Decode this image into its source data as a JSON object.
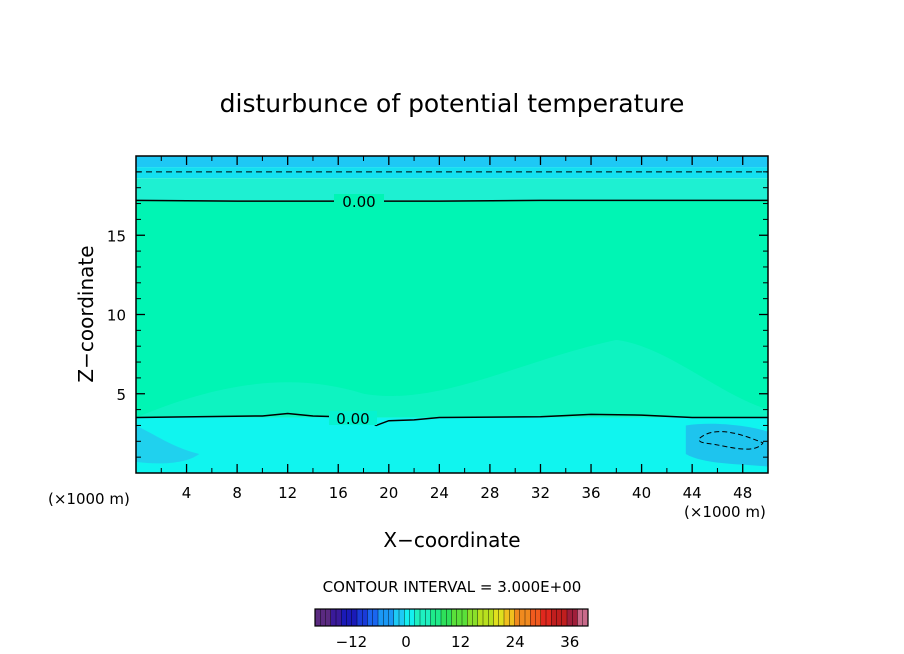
{
  "chart_data": {
    "type": "heatmap",
    "title": "disturbunce of potential temperature",
    "xlabel": "X−coordinate",
    "ylabel": "Z−coordinate",
    "x_units": "(×1000 m)",
    "y_units": "(×1000 m)",
    "xlim": [
      0,
      50
    ],
    "ylim": [
      0,
      20
    ],
    "x_ticks": [
      4,
      8,
      12,
      16,
      20,
      24,
      28,
      32,
      36,
      40,
      44,
      48
    ],
    "x_tick_labels": [
      "4",
      "8",
      "12",
      "16",
      "20",
      "24",
      "28",
      "32",
      "36",
      "40",
      "44",
      "48"
    ],
    "y_ticks": [
      5,
      10,
      15
    ],
    "y_tick_labels": [
      "5",
      "10",
      "15"
    ],
    "contour_interval_text": "CONTOUR INTERVAL = 3.000E+00",
    "contour_labels": [
      {
        "text": "0.00",
        "x": 17.5,
        "z": 17.2
      },
      {
        "text": "0.00",
        "x": 17.5,
        "z": 3.5
      }
    ],
    "zero_contours": [
      {
        "x": [
          0,
          8,
          16,
          24,
          32,
          40,
          50
        ],
        "z": [
          17.2,
          17.15,
          17.15,
          17.15,
          17.2,
          17.2,
          17.2
        ]
      },
      {
        "x": [
          0,
          10,
          12,
          14,
          18,
          19,
          20,
          22,
          24,
          32,
          36,
          40,
          44,
          50
        ],
        "z": [
          3.5,
          3.6,
          3.75,
          3.6,
          3.5,
          3.0,
          3.3,
          3.35,
          3.5,
          3.55,
          3.7,
          3.65,
          3.5,
          3.5
        ]
      }
    ],
    "dashed_contour_top": {
      "x": [
        0,
        50
      ],
      "z": [
        19.0,
        19.0
      ]
    },
    "field_bands": [
      {
        "z": [
          19.3,
          20
        ],
        "value": -1.5,
        "color": "#1ec8f5"
      },
      {
        "z": [
          18.6,
          19.3
        ],
        "value": -0.8,
        "color": "#14e0f0"
      },
      {
        "z": [
          17.2,
          18.6
        ],
        "value": -0.3,
        "color": "#1ef0d2"
      },
      {
        "z": [
          3.5,
          17.2
        ],
        "value": 0.3,
        "color": "#00f5b4"
      },
      {
        "z": [
          0,
          3.5
        ],
        "value": -0.8,
        "color": "#10f5ef"
      }
    ],
    "colorbar": {
      "min": -20,
      "max": 40,
      "ticks": [
        -12,
        0,
        12,
        24,
        36
      ],
      "tick_labels": [
        "−12",
        "0",
        "12",
        "24",
        "36"
      ],
      "colors": [
        "#5a2a80",
        "#3a1a9a",
        "#1a1ab8",
        "#1a3ad8",
        "#1a66f0",
        "#1a98f5",
        "#1ecaf5",
        "#14f0f0",
        "#1ef0c0",
        "#1eeb8a",
        "#2ee05a",
        "#5ae03a",
        "#8ae02a",
        "#b8e01e",
        "#e0e01e",
        "#f0c01e",
        "#f08a1e",
        "#f05a1e",
        "#e0281e",
        "#c01e1e",
        "#a01e3a",
        "#c86a8a"
      ]
    }
  }
}
